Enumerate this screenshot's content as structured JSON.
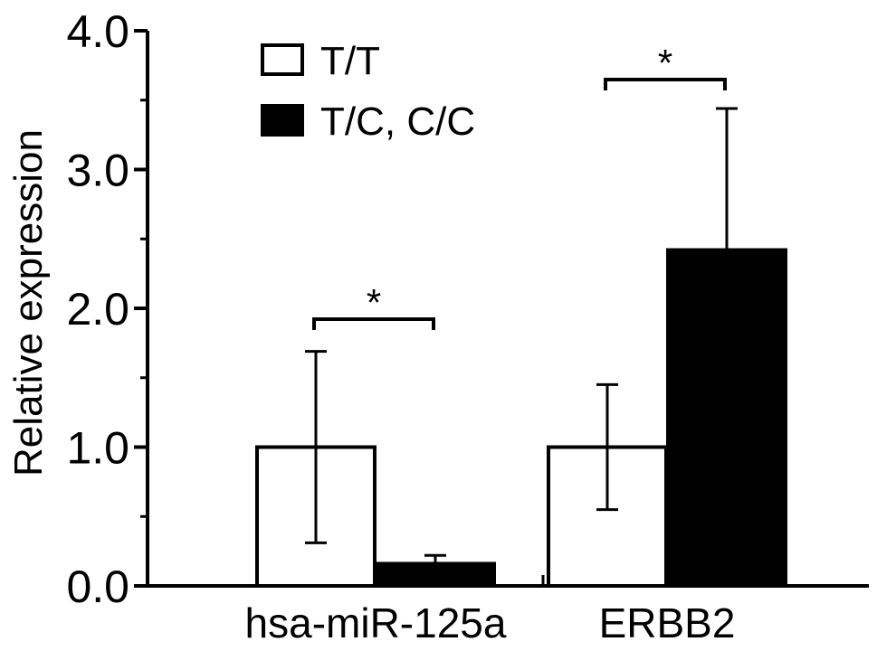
{
  "chart_data": {
    "type": "bar",
    "title": "",
    "xlabel": "",
    "ylabel": "Relative expression",
    "ylim": [
      0.0,
      4.0
    ],
    "yticks": [
      "0.0",
      "1.0",
      "2.0",
      "3.0",
      "4.0"
    ],
    "categories": [
      "hsa-miR-125a",
      "ERBB2"
    ],
    "series": [
      {
        "name": "T/T",
        "values": [
          1.0,
          1.0
        ],
        "errors": [
          0.69,
          0.45
        ],
        "fill": "#ffffff"
      },
      {
        "name": "T/C, C/C",
        "values": [
          0.16,
          2.42
        ],
        "errors": [
          0.06,
          1.02
        ],
        "fill": "#000000"
      }
    ],
    "significance": [
      {
        "category": "hsa-miR-125a",
        "label": "*"
      },
      {
        "category": "ERBB2",
        "label": "*"
      }
    ],
    "legend_position": "top-left",
    "grid": false
  }
}
